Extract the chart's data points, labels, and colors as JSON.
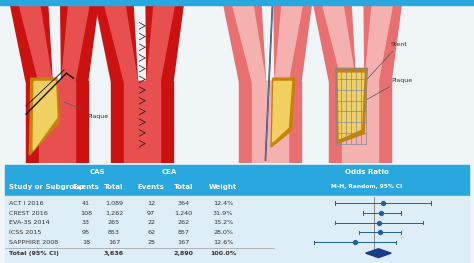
{
  "bg_top": "#e8f4fb",
  "bg_fig": "#f0f5f8",
  "top_stripe_color": "#29a8e0",
  "table_header_bg": "#29a8e0",
  "table_bg": "#ddeef8",
  "vessel_outer": "#cc1111",
  "vessel_inner": "#e85050",
  "vessel_light_outer": "#e87070",
  "vessel_light_inner": "#f5b0b0",
  "plaque_outer": "#c8820a",
  "plaque_inner": "#f0d060",
  "stent_color": "#888899",
  "catheter_color": "#334466",
  "suture_color": "#111111",
  "studies": [
    "ACT I 2016",
    "CREST 2016",
    "EVA-3S 2014",
    "ICSS 2015",
    "SAPPHIRE 2008"
  ],
  "cas_events": [
    41,
    108,
    33,
    95,
    18
  ],
  "cas_total": [
    "1,089",
    "1,262",
    "265",
    "853",
    "167"
  ],
  "cea_events": [
    12,
    97,
    22,
    62,
    25
  ],
  "cea_total": [
    "364",
    "1,240",
    "262",
    "857",
    "167"
  ],
  "weights": [
    "12.4%",
    "31.9%",
    "15.2%",
    "28.0%",
    "12.6%"
  ],
  "total_cas": "3,636",
  "total_cea": "2,890",
  "total_weight": "100.0%",
  "or_points": [
    1.15,
    1.12,
    1.08,
    1.1,
    0.75
  ],
  "or_lower": [
    0.55,
    0.84,
    0.55,
    0.8,
    0.4
  ],
  "or_upper": [
    2.4,
    1.5,
    2.1,
    1.5,
    1.4
  ],
  "total_or": 1.07,
  "total_lower": 0.88,
  "total_upper": 1.3,
  "row_text_color": "#333333",
  "hdr_text_color": "#ffffff",
  "diamond_color": "#1a3a8a",
  "ci_line_color": "#2060a0",
  "dot_color": "#2060a0",
  "label_color": "#333333"
}
